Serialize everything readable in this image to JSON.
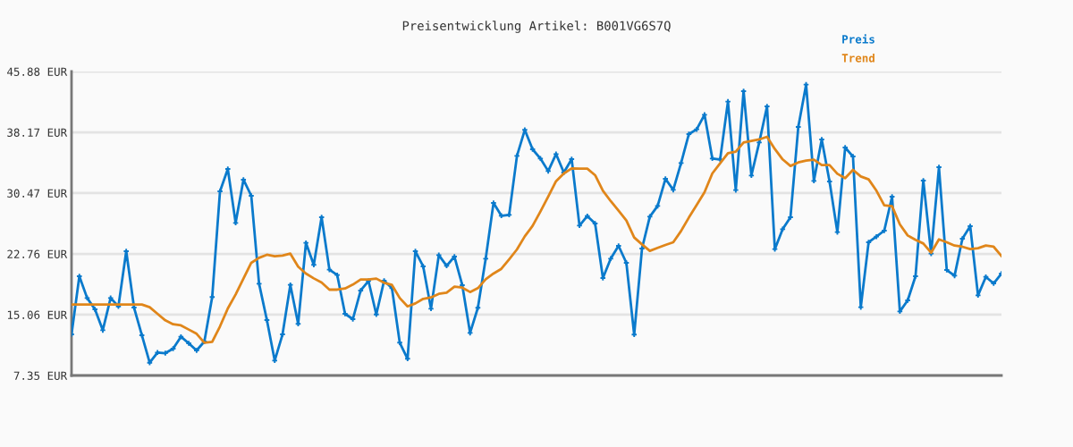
{
  "chart_data": {
    "type": "line",
    "title": "Preisentwicklung Artikel: B001VG6S7Q",
    "categories": [
      null,
      null,
      null,
      null,
      null,
      null,
      null,
      null,
      null,
      null,
      null,
      null,
      null,
      null,
      null,
      null,
      null,
      null,
      null,
      null,
      null,
      null,
      null,
      null,
      null,
      null,
      null,
      null,
      null,
      null,
      null,
      null,
      null,
      null,
      null,
      null,
      null,
      null,
      null,
      null,
      null,
      null,
      null,
      null,
      null,
      null,
      null,
      null,
      null,
      null,
      null,
      null,
      null,
      null,
      null,
      null,
      null,
      null,
      null,
      null,
      null,
      null,
      null,
      null,
      null,
      null,
      null,
      null,
      null,
      null,
      null,
      null,
      null,
      null,
      null,
      null,
      null,
      null,
      null,
      null,
      null,
      null,
      null,
      null,
      null,
      null,
      null,
      null,
      null,
      null,
      null,
      null,
      null,
      null,
      null,
      null,
      null,
      null,
      null,
      null,
      null,
      null,
      null,
      null,
      null,
      null,
      null,
      null,
      null,
      null,
      null,
      null,
      null,
      null,
      null,
      null,
      null,
      null,
      null,
      null
    ],
    "series": [
      {
        "name": "Preis",
        "color": "#0a7acc",
        "marker": "cross",
        "values": [
          12.56,
          19.93,
          17.17,
          15.74,
          13.09,
          17.17,
          16.11,
          23.1,
          15.96,
          12.45,
          8.97,
          10.26,
          10.18,
          10.75,
          12.26,
          11.43,
          10.52,
          11.66,
          17.29,
          30.7,
          33.53,
          26.69,
          32.17,
          30.13,
          18.98,
          14.38,
          9.24,
          12.56,
          18.83,
          13.89,
          24.16,
          21.37,
          27.41,
          20.76,
          20.08,
          15.17,
          14.49,
          18.12,
          19.33,
          15.09,
          19.37,
          18.42,
          11.51,
          9.47,
          23.1,
          21.18,
          15.81,
          22.61,
          21.25,
          22.42,
          18.8,
          12.75,
          15.93,
          22.16,
          29.22,
          27.6,
          27.71,
          35.19,
          38.48,
          36.02,
          34.85,
          33.26,
          35.42,
          33.08,
          34.78,
          26.35,
          27.56,
          26.62,
          19.7,
          22.16,
          23.78,
          21.63,
          12.53,
          23.44,
          27.48,
          28.84,
          32.28,
          30.88,
          34.28,
          37.95,
          38.55,
          40.4,
          34.85,
          34.74,
          42.07,
          30.85,
          43.39,
          32.7,
          36.89,
          41.46,
          23.37,
          25.9,
          27.41,
          38.85,
          44.22,
          32.02,
          37.27,
          31.94,
          25.52,
          36.25,
          35.11,
          16.0,
          24.24,
          24.95,
          25.71,
          30.02,
          15.47,
          16.87,
          19.93,
          32.06,
          22.8,
          33.75,
          20.72,
          20.0,
          24.69,
          26.28,
          17.51,
          19.85,
          19.02,
          20.27
        ]
      },
      {
        "name": "Trend",
        "color": "#e0861a",
        "marker": "none",
        "values": [
          16.34,
          16.34,
          16.34,
          16.34,
          16.34,
          16.34,
          16.34,
          16.34,
          16.34,
          16.34,
          16.0,
          15.17,
          14.34,
          13.85,
          13.7,
          13.17,
          12.64,
          11.51,
          11.62,
          13.58,
          15.85,
          17.62,
          19.63,
          21.63,
          22.27,
          22.65,
          22.46,
          22.54,
          22.8,
          21.14,
          20.27,
          19.66,
          19.14,
          18.23,
          18.23,
          18.38,
          18.87,
          19.51,
          19.51,
          19.63,
          19.1,
          18.83,
          17.17,
          16.11,
          16.49,
          17.06,
          17.25,
          17.7,
          17.85,
          18.61,
          18.49,
          17.93,
          18.42,
          19.55,
          20.27,
          20.87,
          22.08,
          23.33,
          24.99,
          26.31,
          28.13,
          30.02,
          31.98,
          32.96,
          33.6,
          33.57,
          33.57,
          32.74,
          30.77,
          29.45,
          28.24,
          27.0,
          24.84,
          23.97,
          23.14,
          23.52,
          23.9,
          24.24,
          25.67,
          27.37,
          28.96,
          30.58,
          32.96,
          34.25,
          35.53,
          35.72,
          36.89,
          37.08,
          37.27,
          37.61,
          36.06,
          34.74,
          33.91,
          34.36,
          34.59,
          34.7,
          34.02,
          34.02,
          32.92,
          32.36,
          33.41,
          32.58,
          32.21,
          30.77,
          28.92,
          28.81,
          26.5,
          25.1,
          24.54,
          24.08,
          22.91,
          24.61,
          24.24,
          23.82,
          23.67,
          23.37,
          23.48,
          23.82,
          23.67,
          22.5
        ]
      }
    ],
    "ylim": [
      7.35,
      45.88
    ],
    "yticks": [
      {
        "value": 7.35,
        "label": "7.35 EUR"
      },
      {
        "value": 15.06,
        "label": "15.06 EUR"
      },
      {
        "value": 22.76,
        "label": "22.76 EUR"
      },
      {
        "value": 30.47,
        "label": "30.47 EUR"
      },
      {
        "value": 38.17,
        "label": "38.17 EUR"
      },
      {
        "value": 45.88,
        "label": "45.88 EUR"
      }
    ],
    "grid": "y",
    "legend": "top right",
    "line_style": "solid"
  }
}
